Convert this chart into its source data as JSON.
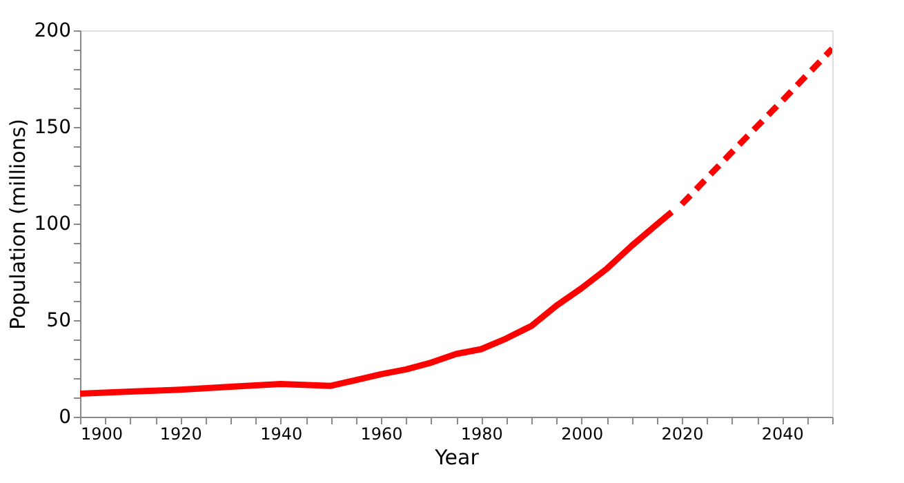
{
  "chart_data": {
    "type": "line",
    "xlabel": "Year",
    "ylabel": "Population (millions)",
    "xlim": [
      1900,
      2050
    ],
    "ylim": [
      0,
      200
    ],
    "xticks": [
      1900,
      {
        "value": 1905,
        "label": null
      },
      {
        "value": 1910,
        "label": null
      },
      {
        "value": 1915,
        "label": null
      },
      1920,
      {
        "value": 1925,
        "label": null
      },
      {
        "value": 1930,
        "label": null
      },
      {
        "value": 1935,
        "label": null
      },
      1940,
      {
        "value": 1945,
        "label": null
      },
      {
        "value": 1950,
        "label": null
      },
      {
        "value": 1955,
        "label": null
      },
      1960,
      {
        "value": 1965,
        "label": null
      },
      {
        "value": 1970,
        "label": null
      },
      {
        "value": 1975,
        "label": null
      },
      1980,
      {
        "value": 1985,
        "label": null
      },
      {
        "value": 1990,
        "label": null
      },
      {
        "value": 1995,
        "label": null
      },
      2000,
      {
        "value": 2005,
        "label": null
      },
      {
        "value": 2010,
        "label": null
      },
      {
        "value": 2015,
        "label": null
      },
      2020,
      {
        "value": 2025,
        "label": null
      },
      {
        "value": 2030,
        "label": null
      },
      {
        "value": 2035,
        "label": null
      },
      2040,
      {
        "value": 2045,
        "label": null
      },
      {
        "value": 2050,
        "label": null
      }
    ],
    "yticks": [
      0,
      {
        "value": 10,
        "label": null
      },
      {
        "value": 20,
        "label": null
      },
      {
        "value": 30,
        "label": null
      },
      {
        "value": 40,
        "label": null
      },
      50,
      {
        "value": 60,
        "label": null
      },
      {
        "value": 70,
        "label": null
      },
      {
        "value": 80,
        "label": null
      },
      {
        "value": 90,
        "label": null
      },
      100,
      {
        "value": 110,
        "label": null
      },
      {
        "value": 120,
        "label": null
      },
      {
        "value": 130,
        "label": null
      },
      {
        "value": 140,
        "label": null
      },
      150,
      {
        "value": 160,
        "label": null
      },
      {
        "value": 170,
        "label": null
      },
      {
        "value": 180,
        "label": null
      },
      {
        "value": 190,
        "label": null
      },
      200
    ],
    "grid": false,
    "series": [
      {
        "color": "#ff0000",
        "line_style": "solid",
        "x": [
          1900,
          1910,
          1920,
          1930,
          1940,
          1950,
          1955,
          1960,
          1965,
          1970,
          1975,
          1980,
          1985,
          1990,
          1995,
          2000,
          2005,
          2010,
          2015,
          2018
        ],
        "values": [
          12,
          13,
          14,
          15.5,
          17,
          16,
          19,
          22,
          24.5,
          28,
          32.5,
          35,
          40.5,
          47,
          57.5,
          66.5,
          76.5,
          88.5,
          99.5,
          106
        ]
      },
      {
        "color": "#ff0000",
        "line_style": "dashed",
        "x": [
          2020,
          2030,
          2040,
          2050
        ],
        "values": [
          110,
          137,
          163.5,
          190.5
        ]
      }
    ]
  }
}
